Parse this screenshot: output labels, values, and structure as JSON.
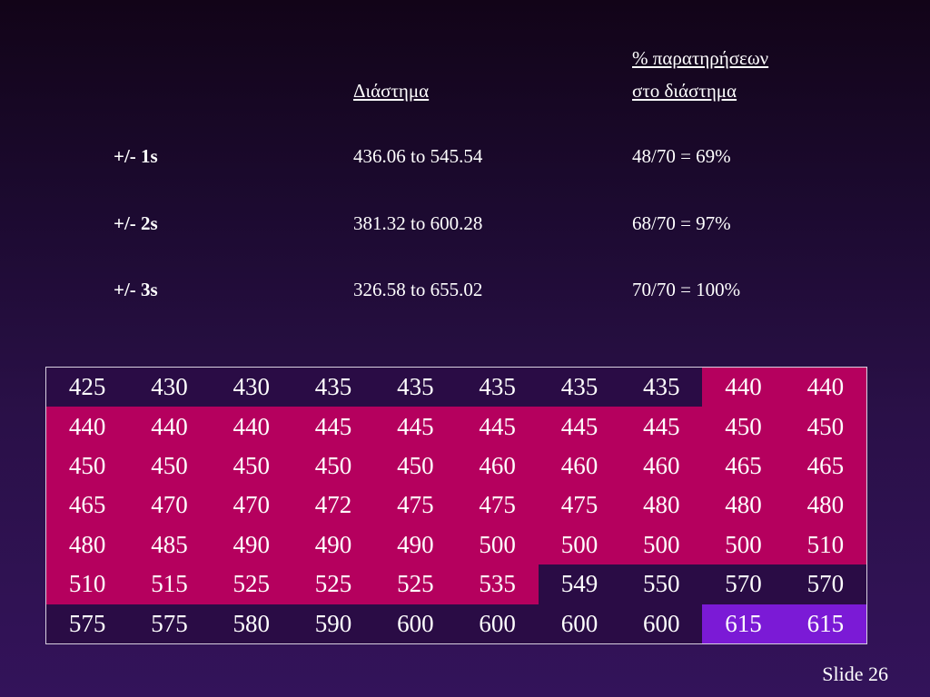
{
  "header": {
    "interval_label": "Διάστημα",
    "pct_label_line1": "% παρατηρήσεων",
    "pct_label_line2": "στο διάστημα"
  },
  "rows": [
    {
      "label": "+/- 1s",
      "interval": "436.06 to 545.54",
      "pct": "48/70 = 69%"
    },
    {
      "label": "+/- 2s",
      "interval": "381.32 to 600.28",
      "pct": "68/70 = 97%"
    },
    {
      "label": "+/- 3s",
      "interval": "326.58 to 655.02",
      "pct": "70/70 = 100%"
    }
  ],
  "grid": {
    "values": [
      [
        "425",
        "430",
        "430",
        "435",
        "435",
        "435",
        "435",
        "435",
        "440",
        "440"
      ],
      [
        "440",
        "440",
        "440",
        "445",
        "445",
        "445",
        "445",
        "445",
        "450",
        "450"
      ],
      [
        "450",
        "450",
        "450",
        "450",
        "450",
        "460",
        "460",
        "460",
        "465",
        "465"
      ],
      [
        "465",
        "470",
        "470",
        "472",
        "475",
        "475",
        "475",
        "480",
        "480",
        "480"
      ],
      [
        "480",
        "485",
        "490",
        "490",
        "490",
        "500",
        "500",
        "500",
        "500",
        "510"
      ],
      [
        "510",
        "515",
        "525",
        "525",
        "525",
        "535",
        "549",
        "550",
        "570",
        "570"
      ],
      [
        "575",
        "575",
        "580",
        "590",
        "600",
        "600",
        "600",
        "600",
        "615",
        "615"
      ]
    ],
    "shading": [
      [
        "d",
        "d",
        "d",
        "d",
        "d",
        "d",
        "d",
        "d",
        "p",
        "p"
      ],
      [
        "p",
        "p",
        "p",
        "p",
        "p",
        "p",
        "p",
        "p",
        "p",
        "p"
      ],
      [
        "p",
        "p",
        "p",
        "p",
        "p",
        "p",
        "p",
        "p",
        "p",
        "p"
      ],
      [
        "p",
        "p",
        "p",
        "p",
        "p",
        "p",
        "p",
        "p",
        "p",
        "p"
      ],
      [
        "p",
        "p",
        "p",
        "p",
        "p",
        "p",
        "p",
        "p",
        "p",
        "p"
      ],
      [
        "p",
        "p",
        "p",
        "p",
        "p",
        "p",
        "d",
        "d",
        "d",
        "d"
      ],
      [
        "d",
        "d",
        "d",
        "d",
        "d",
        "d",
        "d",
        "d",
        "v",
        "v"
      ]
    ],
    "colors": {
      "d": "#2a0c45",
      "p": "#b5005e",
      "v": "#7b1ad6"
    }
  },
  "footer": {
    "slide_label": "Slide 26"
  }
}
